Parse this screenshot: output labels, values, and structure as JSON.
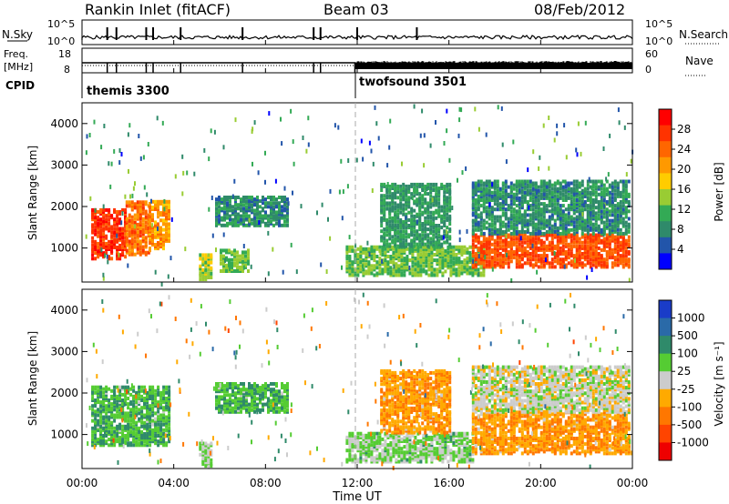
{
  "header": {
    "station": "Rankin Inlet (fitACF)",
    "beam": "Beam 03",
    "date": "08/Feb/2012"
  },
  "top_panels": {
    "nsky_label": "N.Sky",
    "nsearch_label": "N.Search",
    "nsky_ticks": [
      "10^5",
      "10^0"
    ],
    "freq_label_line1": "Freq.",
    "freq_label_line2": "[MHz]",
    "freq_ticks": [
      "18",
      "8"
    ],
    "nave_label": "Nave",
    "nave_ticks": [
      "60",
      "0"
    ],
    "cpid_label": "CPID",
    "cpid_modes": [
      {
        "name": "themis 3300",
        "start_hour": 0,
        "end_hour": 11.9
      },
      {
        "name": "twofsound 3501",
        "start_hour": 11.9,
        "end_hour": 24
      }
    ]
  },
  "power_scale": {
    "title": "Power [dB]",
    "ticks": [
      "28",
      "24",
      "20",
      "16",
      "12",
      "8",
      "4"
    ],
    "colors": [
      "#ff0000",
      "#ff3300",
      "#ff6600",
      "#ff9900",
      "#ffcc00",
      "#99cc33",
      "#33aa55",
      "#2f8a6a",
      "#2255aa",
      "#0000ff"
    ]
  },
  "velocity_scale": {
    "title": "Velocity [m s⁻¹]",
    "ticks": [
      "1000",
      "500",
      "100",
      "25",
      "-25",
      "-100",
      "-500",
      "-1000"
    ],
    "colors": [
      "#1a3cc8",
      "#2a6aa8",
      "#2f8a6a",
      "#55cc33",
      "#cccccc",
      "#ffaa00",
      "#ff7700",
      "#ff4400",
      "#ee0000"
    ]
  },
  "axes": {
    "ylabel": "Slant Range [km]",
    "xlabel": "Time UT",
    "yticks": [
      "1000",
      "2000",
      "3000",
      "4000"
    ],
    "xticks": [
      "00:00",
      "04:00",
      "08:00",
      "12:00",
      "16:00",
      "20:00",
      "00:00"
    ]
  },
  "chart_data": [
    {
      "type": "heatmap",
      "title": "",
      "ylabel": "Slant Range [km]",
      "xlabel": "",
      "colorbar_label": "Power [dB]",
      "x_range_hours": [
        0,
        24
      ],
      "ylim": [
        180,
        4500
      ],
      "clim": [
        0,
        30
      ],
      "blobs": [
        {
          "x0": 0.4,
          "x1": 1.9,
          "y0": 700,
          "y1": 1900,
          "v": 26
        },
        {
          "x0": 1.9,
          "x1": 2.9,
          "y0": 800,
          "y1": 2100,
          "v": 22
        },
        {
          "x0": 2.9,
          "x1": 3.8,
          "y0": 900,
          "y1": 2100,
          "v": 20
        },
        {
          "x0": 5.1,
          "x1": 5.6,
          "y0": 200,
          "y1": 800,
          "v": 14
        },
        {
          "x0": 6.0,
          "x1": 7.2,
          "y0": 400,
          "y1": 900,
          "v": 12
        },
        {
          "x0": 5.8,
          "x1": 9.0,
          "y0": 1500,
          "y1": 2200,
          "v": 8
        },
        {
          "x0": 11.5,
          "x1": 17.5,
          "y0": 300,
          "y1": 1000,
          "v": 12
        },
        {
          "x0": 13.0,
          "x1": 16.0,
          "y0": 1000,
          "y1": 2500,
          "v": 9
        },
        {
          "x0": 17.0,
          "x1": 23.8,
          "y0": 500,
          "y1": 1300,
          "v": 24
        },
        {
          "x0": 17.0,
          "x1": 23.8,
          "y0": 1300,
          "y1": 2600,
          "v": 8
        }
      ]
    },
    {
      "type": "heatmap",
      "title": "",
      "ylabel": "Slant Range [km]",
      "xlabel": "Time UT",
      "colorbar_label": "Velocity [m s⁻¹]",
      "x_range_hours": [
        0,
        24
      ],
      "ylim": [
        180,
        4500
      ],
      "clim": [
        -1000,
        1000
      ],
      "blobs": [
        {
          "x0": 0.4,
          "x1": 3.8,
          "y0": 700,
          "y1": 2100,
          "v": 300
        },
        {
          "x0": 5.1,
          "x1": 5.6,
          "y0": 200,
          "y1": 800,
          "v": 100
        },
        {
          "x0": 5.8,
          "x1": 9.0,
          "y0": 1500,
          "y1": 2200,
          "v": 300
        },
        {
          "x0": 11.5,
          "x1": 17.0,
          "y0": 300,
          "y1": 1000,
          "v": 150
        },
        {
          "x0": 13.0,
          "x1": 16.0,
          "y0": 1000,
          "y1": 2500,
          "v": -300
        },
        {
          "x0": 17.0,
          "x1": 23.8,
          "y0": 500,
          "y1": 1500,
          "v": -300
        },
        {
          "x0": 17.0,
          "x1": 23.8,
          "y0": 1500,
          "y1": 2600,
          "v": 0
        }
      ]
    }
  ]
}
